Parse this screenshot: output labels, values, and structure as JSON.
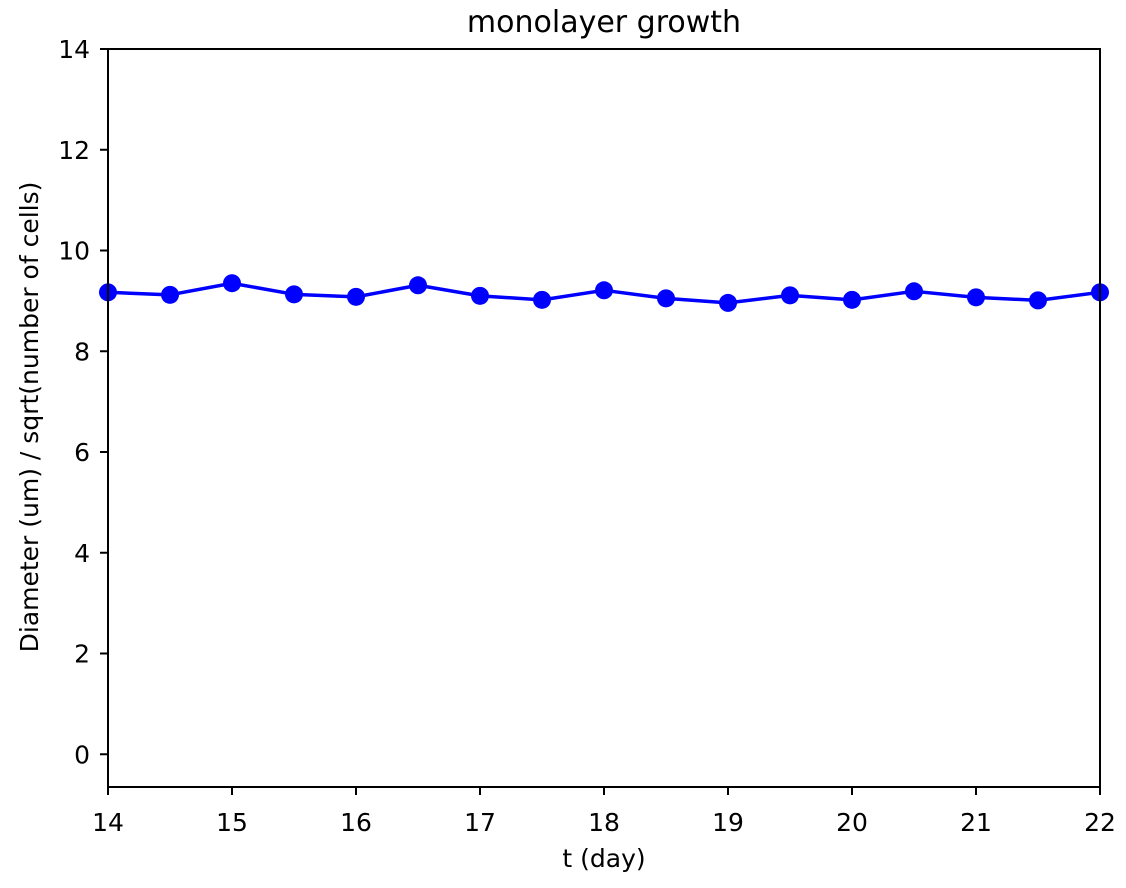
{
  "chart_data": {
    "type": "line",
    "title": "monolayer growth",
    "xlabel": "t (day)",
    "ylabel": "Diameter (um) / sqrt(number of cells)",
    "xlim": [
      14,
      22
    ],
    "ylim": [
      -0.65,
      14
    ],
    "x_ticks": [
      14,
      15,
      16,
      17,
      18,
      19,
      20,
      21,
      22
    ],
    "y_ticks": [
      0,
      2,
      4,
      6,
      8,
      10,
      12,
      14
    ],
    "grid": false,
    "legend": null,
    "series": [
      {
        "color": "#0000ff",
        "marker": "circle",
        "x": [
          14,
          14.5,
          15,
          15.5,
          16,
          16.5,
          17,
          17.5,
          18,
          18.5,
          19,
          19.5,
          20,
          20.5,
          21,
          21.5,
          22
        ],
        "y": [
          9.17,
          9.12,
          9.35,
          9.13,
          9.08,
          9.31,
          9.1,
          9.02,
          9.21,
          9.05,
          8.96,
          9.11,
          9.02,
          9.19,
          9.07,
          9.01,
          9.17
        ]
      }
    ]
  }
}
